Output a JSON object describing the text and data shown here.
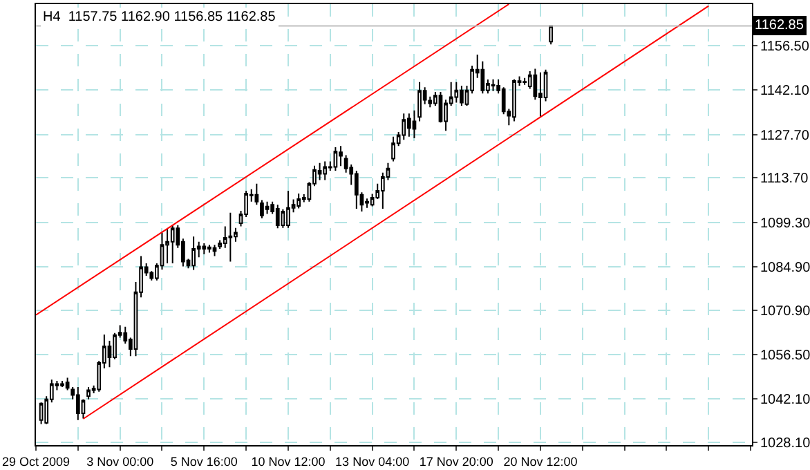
{
  "chart_data": {
    "type": "candlestick",
    "title": "H4  1157.75 1162.90 1156.85 1162.85",
    "color": "#000000",
    "categories": [
      "29 Oct 2009",
      null,
      null,
      null,
      null,
      null,
      null,
      null,
      null,
      null,
      null,
      null,
      null,
      null,
      null,
      null,
      "3 Nov 00:00",
      null,
      null,
      null,
      null,
      null,
      null,
      null,
      null,
      null,
      null,
      null,
      null,
      null,
      null,
      null,
      "5 Nov 16:00",
      null,
      null,
      null,
      null,
      null,
      null,
      null,
      null,
      null,
      null,
      null,
      null,
      null,
      null,
      null,
      "10 Nov 12:00",
      null,
      null,
      null,
      null,
      null,
      null,
      null,
      null,
      null,
      null,
      null,
      null,
      null,
      null,
      null,
      "13 Nov 04:00",
      null,
      null,
      null,
      null,
      null,
      null,
      null,
      null,
      null,
      null,
      null,
      null,
      null,
      null,
      null,
      "17 Nov 20:00",
      null,
      null,
      null,
      null,
      null,
      null,
      null,
      null,
      null,
      null,
      null,
      null,
      null,
      null,
      null,
      "20 Nov 12:00",
      null,
      null,
      null,
      null,
      null,
      null,
      null,
      null,
      null,
      null,
      null,
      null,
      null,
      null,
      null,
      null,
      null,
      null,
      null,
      null,
      null,
      null,
      null,
      null,
      null,
      null,
      null,
      null,
      null,
      null,
      null,
      null,
      null,
      null,
      null,
      null,
      null,
      null,
      null,
      null
    ],
    "ohlc": [
      null,
      [
        1035.3,
        1041,
        1034,
        1040.7
      ],
      [
        1034.4,
        1043,
        1034,
        1042
      ],
      [
        1042,
        1048.4,
        1041,
        1047
      ],
      [
        1047,
        1048,
        1045,
        1046.5
      ],
      [
        1046.5,
        1048,
        1046,
        1047
      ],
      [
        1047.5,
        1049,
        1045,
        1045.7
      ],
      [
        1045.2,
        1046,
        1042,
        1043.4
      ],
      [
        1043.4,
        1046,
        1035.3,
        1037.5
      ],
      [
        1037.5,
        1042,
        1035.8,
        1041.6
      ],
      [
        1043,
        1046,
        1042,
        1045
      ],
      [
        1045,
        1046.5,
        1044,
        1045.5
      ],
      [
        1045.2,
        1054.5,
        1044.5,
        1053.8
      ],
      [
        1053.8,
        1063,
        1052,
        1059.2
      ],
      [
        1059.2,
        1061,
        1052.4,
        1055.6
      ],
      [
        1055.6,
        1063.5,
        1055,
        1062.8
      ],
      [
        1062.8,
        1066,
        1062,
        1063.6
      ],
      [
        1063.5,
        1065.5,
        1060,
        1061
      ],
      [
        1061.4,
        1062,
        1056,
        1058.3
      ],
      [
        1058.3,
        1080,
        1056,
        1076.7
      ],
      [
        1076.7,
        1088.4,
        1075,
        1084.8
      ],
      [
        1084.8,
        1086,
        1082,
        1083
      ],
      [
        1083,
        1083.5,
        1080.5,
        1081.2
      ],
      [
        1081.2,
        1086,
        1080.5,
        1085.3
      ],
      [
        1085.3,
        1096,
        1084,
        1092
      ],
      [
        1092,
        1097,
        1086,
        1093
      ],
      [
        1093,
        1098.4,
        1086,
        1097.4
      ],
      [
        1097.4,
        1098.4,
        1091,
        1092
      ],
      [
        1093,
        1094,
        1085,
        1086.6
      ],
      [
        1087,
        1087.5,
        1084.4,
        1085.3
      ],
      [
        1085.3,
        1094.7,
        1083.9,
        1090.7
      ],
      [
        1090.7,
        1093,
        1088,
        1091.5
      ],
      [
        1091.5,
        1092.5,
        1089,
        1090.7
      ],
      [
        1090.7,
        1092,
        1089.5,
        1091.2
      ],
      [
        1091,
        1092,
        1088.4,
        1090
      ],
      [
        1091.5,
        1093.5,
        1090.7,
        1092.5
      ],
      [
        1092.5,
        1098,
        1091,
        1094.3
      ],
      [
        1094.4,
        1102.4,
        1086.6,
        1094.8
      ],
      [
        1094.7,
        1097.5,
        1093,
        1096
      ],
      [
        1099,
        1103,
        1098,
        1101.9
      ],
      [
        1101.9,
        1109.5,
        1101,
        1108.6
      ],
      [
        1108.2,
        1110,
        1106,
        1108
      ],
      [
        1108.2,
        1111.8,
        1105,
        1106
      ],
      [
        1105.5,
        1106.5,
        1100.6,
        1101.5
      ],
      [
        1104.4,
        1106,
        1102,
        1103.5
      ],
      [
        1105,
        1106,
        1102,
        1102.8
      ],
      [
        1103.7,
        1105,
        1097.4,
        1098.3
      ],
      [
        1098.3,
        1103.5,
        1097.5,
        1102.8
      ],
      [
        1098.3,
        1109.5,
        1097.5,
        1104
      ],
      [
        1104,
        1106.7,
        1102.5,
        1105
      ],
      [
        1104.6,
        1108.6,
        1103.8,
        1106.8
      ],
      [
        1106.8,
        1108.4,
        1105.8,
        1107.3
      ],
      [
        1106.8,
        1112.3,
        1106,
        1111.8
      ],
      [
        1111.8,
        1117.6,
        1111,
        1116.3
      ],
      [
        1116,
        1118.5,
        1113,
        1115
      ],
      [
        1115,
        1119,
        1113,
        1117.2
      ],
      [
        1117,
        1119,
        1116,
        1117.2
      ],
      [
        1117.2,
        1123.6,
        1116,
        1122.2
      ],
      [
        1122,
        1124,
        1117.5,
        1120.8
      ],
      [
        1119.9,
        1121,
        1115.4,
        1116.7
      ],
      [
        1117,
        1118,
        1111.4,
        1115
      ],
      [
        1115,
        1116,
        1103.7,
        1108.2
      ],
      [
        1108.2,
        1109,
        1102.8,
        1105
      ],
      [
        1105.6,
        1107,
        1104,
        1106
      ],
      [
        1105,
        1108.5,
        1104.5,
        1107.3
      ],
      [
        1107.3,
        1111.8,
        1106.8,
        1109.5
      ],
      [
        1109.5,
        1115.4,
        1103.7,
        1114
      ],
      [
        1114,
        1118.5,
        1113,
        1116.7
      ],
      [
        1119.9,
        1127,
        1119,
        1124.9
      ],
      [
        1124.9,
        1128.5,
        1124,
        1127.5
      ],
      [
        1127.5,
        1134.5,
        1126,
        1132.5
      ],
      [
        1132.9,
        1134.5,
        1127,
        1129.8
      ],
      [
        1132,
        1135.5,
        1126.5,
        1129.5
      ],
      [
        1133.4,
        1144.7,
        1132,
        1141.9
      ],
      [
        1141.9,
        1143,
        1137.5,
        1138.9
      ],
      [
        1138.7,
        1140,
        1136.5,
        1137.8
      ],
      [
        1137.8,
        1141.5,
        1137,
        1140.3
      ],
      [
        1140.3,
        1141.5,
        1131.6,
        1132
      ],
      [
        1132,
        1139,
        1128.9,
        1137.8
      ],
      [
        1137.8,
        1144.7,
        1137,
        1139.8
      ],
      [
        1139.8,
        1144.7,
        1138,
        1142
      ],
      [
        1142,
        1143.5,
        1137,
        1138
      ],
      [
        1137.5,
        1143.5,
        1137,
        1142
      ],
      [
        1142,
        1150,
        1141,
        1148.7
      ],
      [
        1148.7,
        1153.6,
        1146,
        1147.7
      ],
      [
        1148.7,
        1151.4,
        1141,
        1142
      ],
      [
        1142,
        1145.5,
        1141,
        1144.2
      ],
      [
        1143.5,
        1145.6,
        1141.8,
        1143.8
      ],
      [
        1143.5,
        1145.5,
        1141,
        1142
      ],
      [
        1142.4,
        1143,
        1134.3,
        1135.2
      ],
      [
        1135.2,
        1136,
        1130.7,
        1133.8
      ],
      [
        1133.4,
        1145.6,
        1132,
        1145.1
      ],
      [
        1145,
        1146.5,
        1143.5,
        1144.6
      ],
      [
        1144.6,
        1146,
        1143.8,
        1144.8
      ],
      [
        1143.3,
        1148.2,
        1142.5,
        1146.9
      ],
      [
        1146.9,
        1149,
        1139,
        1140.1
      ],
      [
        1141,
        1147.8,
        1133.4,
        1139.7
      ],
      [
        1139.7,
        1148.7,
        1138.5,
        1147.8
      ],
      [
        1157.75,
        1162.9,
        1156.85,
        1162.85
      ],
      null,
      null,
      null,
      null,
      null,
      null,
      null,
      null,
      null,
      null,
      null,
      null,
      null,
      null,
      null,
      null,
      null,
      null,
      null,
      null,
      null,
      null,
      null,
      null,
      null,
      null,
      null,
      null,
      null,
      null,
      null,
      null,
      null,
      null,
      null,
      null,
      null,
      null
    ],
    "series": [
      {
        "type": "line",
        "color": "#ff0000",
        "values": [
          1069.3,
          null,
          null,
          null,
          null,
          null,
          null,
          null,
          null,
          null,
          null,
          null,
          null,
          null,
          null,
          null,
          null,
          null,
          null,
          null,
          null,
          null,
          null,
          null,
          null,
          null,
          null,
          null,
          null,
          null,
          null,
          null,
          null,
          null,
          null,
          null,
          null,
          null,
          null,
          null,
          null,
          null,
          null,
          null,
          null,
          null,
          null,
          null,
          null,
          null,
          null,
          null,
          null,
          null,
          null,
          null,
          null,
          null,
          null,
          null,
          null,
          null,
          null,
          null,
          null,
          null,
          null,
          null,
          null,
          null,
          null,
          null,
          null,
          null,
          null,
          null,
          null,
          null,
          null,
          null,
          null,
          null,
          null,
          null,
          null,
          null,
          null,
          null,
          null,
          null,
          1169.9,
          null,
          null,
          null,
          null,
          null,
          null,
          null,
          null,
          null,
          null,
          null,
          null,
          null,
          null,
          null,
          null,
          null,
          null,
          null,
          null,
          null,
          null,
          null,
          null,
          null,
          null,
          null,
          null,
          null,
          null,
          null,
          null,
          null,
          null,
          null,
          null,
          null,
          null,
          null,
          null,
          null,
          null,
          null,
          null,
          null,
          null
        ]
      },
      {
        "type": "line",
        "color": "#ff0000",
        "values": [
          null,
          null,
          null,
          null,
          null,
          null,
          null,
          null,
          null,
          1035.7,
          null,
          null,
          null,
          null,
          null,
          null,
          null,
          null,
          null,
          null,
          null,
          null,
          null,
          null,
          null,
          null,
          null,
          null,
          null,
          null,
          null,
          null,
          null,
          null,
          null,
          null,
          null,
          null,
          null,
          null,
          null,
          null,
          null,
          null,
          null,
          null,
          null,
          null,
          null,
          null,
          null,
          null,
          null,
          null,
          null,
          null,
          null,
          null,
          null,
          null,
          null,
          null,
          null,
          null,
          null,
          null,
          null,
          null,
          null,
          null,
          null,
          null,
          null,
          null,
          null,
          null,
          null,
          null,
          null,
          null,
          null,
          null,
          null,
          null,
          null,
          null,
          null,
          null,
          null,
          null,
          null,
          null,
          null,
          null,
          null,
          null,
          null,
          null,
          null,
          null,
          null,
          null,
          null,
          null,
          null,
          null,
          null,
          null,
          null,
          null,
          null,
          null,
          null,
          null,
          null,
          null,
          null,
          null,
          null,
          null,
          null,
          null,
          null,
          null,
          null,
          null,
          null,
          null,
          1169.3,
          null,
          null,
          null,
          null,
          null,
          null,
          null,
          null
        ]
      }
    ],
    "ylim": [
      1027.2,
      1169.9
    ],
    "yticks": [
      {
        "value": 1028.1,
        "label": "1028.10"
      },
      {
        "value": 1042.1,
        "label": "1042.10"
      },
      {
        "value": 1056.5,
        "label": "1056.50"
      },
      {
        "value": 1070.9,
        "label": "1070.90"
      },
      {
        "value": 1084.9,
        "label": "1084.90"
      },
      {
        "value": 1099.3,
        "label": "1099.30"
      },
      {
        "value": 1113.7,
        "label": "1113.70"
      },
      {
        "value": 1127.7,
        "label": "1127.70"
      },
      {
        "value": 1142.1,
        "label": "1142.10"
      },
      {
        "value": 1156.5,
        "label": "1156.50"
      }
    ],
    "ref_lines": [
      {
        "axis": "y",
        "value": 1162.85,
        "label": "1162.85",
        "color": "#c0c0c0"
      }
    ],
    "grid": true
  }
}
